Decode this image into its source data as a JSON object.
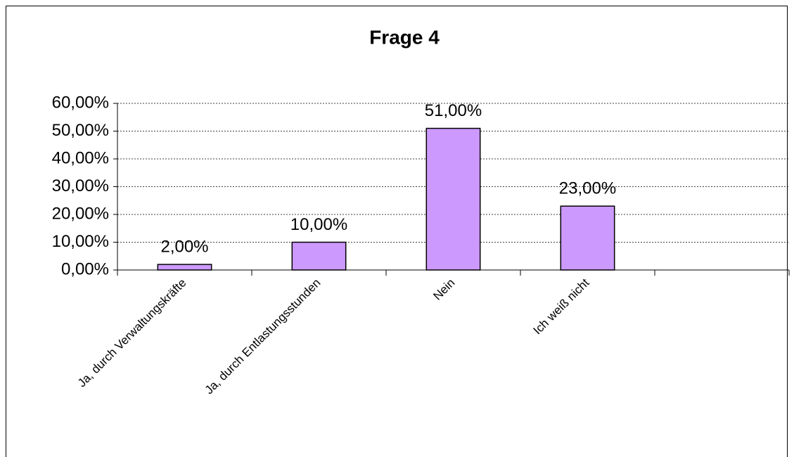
{
  "chart_data": {
    "type": "bar",
    "title": "Frage 4",
    "categories": [
      "Ja, durch Verwaltungskräfte",
      "Ja, durch Entlastungsstunden",
      "Nein",
      "Ich weiß nicht",
      null
    ],
    "values": [
      2,
      10,
      51,
      23,
      null
    ],
    "value_labels": [
      "2,00%",
      "10,00%",
      "51,00%",
      "23,00%",
      null
    ],
    "color": "#cc99ff",
    "ylim": [
      0,
      60
    ],
    "yticks": [
      {
        "value": 0,
        "label": "0,00%"
      },
      {
        "value": 10,
        "label": "10,00%"
      },
      {
        "value": 20,
        "label": "20,00%"
      },
      {
        "value": 30,
        "label": "30,00%"
      },
      {
        "value": 40,
        "label": "40,00%"
      },
      {
        "value": 50,
        "label": "50,00%"
      },
      {
        "value": 60,
        "label": "60,00%"
      }
    ],
    "grid": true
  }
}
